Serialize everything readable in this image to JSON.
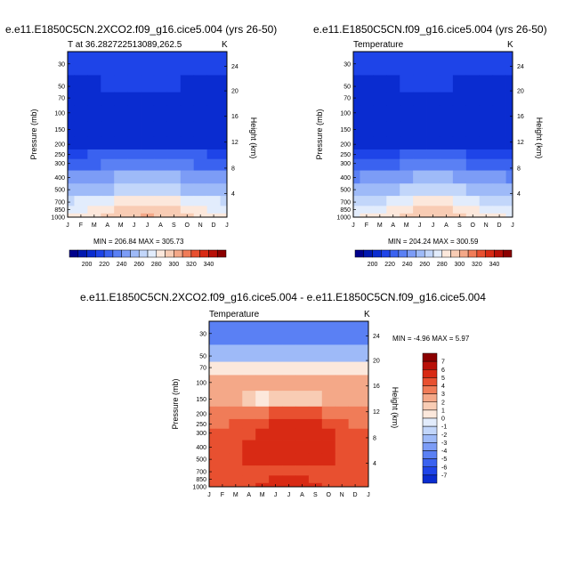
{
  "chart_data": [
    {
      "type": "heatmap",
      "title": "e.e11.E1850C5CN.2XCO2.f09_g16.cice5.004 (yrs 26-50)",
      "subtitle_left": "T at 36.282722513089,262.5",
      "units": "K",
      "xlabel": "",
      "ylabel": "Pressure (mb)",
      "ylabel_right": "Height (km)",
      "x_ticks": [
        "J",
        "F",
        "M",
        "A",
        "M",
        "J",
        "J",
        "A",
        "S",
        "O",
        "N",
        "D",
        "J"
      ],
      "y_ticks": [
        "30",
        "50",
        "70",
        "100",
        "150",
        "200",
        "250",
        "300",
        "400",
        "500",
        "700",
        "850",
        "1000"
      ],
      "y_ticks_right": [
        "24",
        "20",
        "16",
        "12",
        "8",
        "4"
      ],
      "min_max_text": "MIN = 206.84  MAX = 305.73",
      "colorbar_orientation": "horizontal",
      "colorbar_labels": [
        "200",
        "220",
        "240",
        "260",
        "280",
        "300",
        "320",
        "340"
      ],
      "colorbar_colors": [
        "#00008b",
        "#0018b0",
        "#0a2cd0",
        "#1e44e8",
        "#3a62f0",
        "#5a80f4",
        "#7c9cf6",
        "#9ebaf8",
        "#c2d6fa",
        "#e2ecfc",
        "#fce8dc",
        "#f8ccb4",
        "#f4a888",
        "#f07c58",
        "#e85030",
        "#d82a14",
        "#b81008",
        "#8b0000"
      ],
      "values": {
        "levels": [
          "30",
          "50",
          "70",
          "100",
          "150",
          "200",
          "250",
          "300",
          "400",
          "500",
          "700",
          "850",
          "1000"
        ],
        "months": [
          "J",
          "F",
          "M",
          "A",
          "M",
          "J",
          "J",
          "A",
          "S",
          "O",
          "N",
          "D",
          "J"
        ],
        "rows": [
          [
            215,
            216,
            217,
            218,
            219,
            220,
            221,
            220,
            218,
            217,
            216,
            215,
            215
          ],
          [
            212,
            213,
            214,
            215,
            216,
            217,
            217,
            216,
            215,
            214,
            213,
            212,
            212
          ],
          [
            210,
            210,
            212,
            209,
            208,
            208,
            208,
            208,
            210,
            210,
            209,
            210,
            210
          ],
          [
            210,
            210,
            210,
            208,
            207,
            207,
            207,
            207,
            208,
            208,
            209,
            210,
            210
          ],
          [
            211,
            211,
            211,
            209,
            208,
            208,
            208,
            208,
            209,
            210,
            211,
            211,
            211
          ],
          [
            214,
            214,
            214,
            214,
            214,
            214,
            214,
            214,
            214,
            214,
            214,
            214,
            214
          ],
          [
            222,
            223,
            225,
            227,
            230,
            232,
            233,
            232,
            230,
            227,
            225,
            223,
            222
          ],
          [
            230,
            231,
            233,
            236,
            239,
            241,
            242,
            241,
            239,
            236,
            233,
            231,
            230
          ],
          [
            246,
            247,
            249,
            252,
            255,
            257,
            258,
            257,
            255,
            252,
            249,
            247,
            246
          ],
          [
            258,
            259,
            261,
            264,
            268,
            270,
            271,
            270,
            268,
            264,
            261,
            259,
            258
          ],
          [
            274,
            275,
            277,
            281,
            285,
            288,
            289,
            288,
            285,
            281,
            277,
            275,
            274
          ],
          [
            283,
            284,
            287,
            291,
            295,
            299,
            300,
            299,
            296,
            291,
            287,
            284,
            283
          ],
          [
            288,
            289,
            292,
            296,
            300,
            304,
            305,
            304,
            301,
            296,
            292,
            289,
            288
          ]
        ]
      }
    },
    {
      "type": "heatmap",
      "title": "e.e11.E1850C5CN.f09_g16.cice5.004 (yrs 26-50)",
      "subtitle_left": "Temperature",
      "units": "K",
      "xlabel": "",
      "ylabel": "Pressure (mb)",
      "ylabel_right": "Height (km)",
      "x_ticks": [
        "J",
        "F",
        "M",
        "A",
        "M",
        "J",
        "J",
        "A",
        "S",
        "O",
        "N",
        "D",
        "J"
      ],
      "y_ticks": [
        "30",
        "50",
        "70",
        "100",
        "150",
        "200",
        "250",
        "300",
        "400",
        "500",
        "700",
        "850",
        "1000"
      ],
      "y_ticks_right": [
        "24",
        "20",
        "16",
        "12",
        "8",
        "4"
      ],
      "min_max_text": "MIN = 204.24  MAX = 300.59",
      "colorbar_orientation": "horizontal",
      "colorbar_labels": [
        "200",
        "220",
        "240",
        "260",
        "280",
        "300",
        "320",
        "340"
      ],
      "colorbar_colors": [
        "#00008b",
        "#0018b0",
        "#0a2cd0",
        "#1e44e8",
        "#3a62f0",
        "#5a80f4",
        "#7c9cf6",
        "#9ebaf8",
        "#c2d6fa",
        "#e2ecfc",
        "#fce8dc",
        "#f8ccb4",
        "#f4a888",
        "#f07c58",
        "#e85030",
        "#d82a14",
        "#b81008",
        "#8b0000"
      ],
      "values": {
        "levels": [
          "30",
          "50",
          "70",
          "100",
          "150",
          "200",
          "250",
          "300",
          "400",
          "500",
          "700",
          "850",
          "1000"
        ],
        "months": [
          "J",
          "F",
          "M",
          "A",
          "M",
          "J",
          "J",
          "A",
          "S",
          "O",
          "N",
          "D",
          "J"
        ],
        "rows": [
          [
            216,
            217,
            218,
            220,
            222,
            223,
            224,
            223,
            221,
            219,
            217,
            216,
            216
          ],
          [
            212,
            212,
            213,
            214,
            215,
            216,
            216,
            216,
            214,
            213,
            212,
            212,
            212
          ],
          [
            208,
            209,
            210,
            210,
            210,
            210,
            210,
            210,
            210,
            210,
            209,
            208,
            208
          ],
          [
            206,
            206,
            208,
            208,
            208,
            208,
            208,
            208,
            208,
            208,
            207,
            206,
            206
          ],
          [
            209,
            209,
            209,
            208,
            207,
            207,
            207,
            207,
            208,
            209,
            209,
            209,
            209
          ],
          [
            214,
            214,
            214,
            214,
            214,
            214,
            214,
            214,
            214,
            214,
            214,
            214,
            214
          ],
          [
            220,
            221,
            222,
            223,
            225,
            227,
            228,
            227,
            225,
            223,
            222,
            221,
            220
          ],
          [
            228,
            229,
            231,
            233,
            236,
            238,
            239,
            238,
            236,
            233,
            231,
            229,
            228
          ],
          [
            244,
            245,
            247,
            250,
            253,
            255,
            256,
            255,
            253,
            250,
            247,
            245,
            244
          ],
          [
            256,
            257,
            259,
            262,
            265,
            267,
            268,
            267,
            265,
            262,
            259,
            257,
            256
          ],
          [
            271,
            272,
            274,
            278,
            282,
            285,
            286,
            285,
            282,
            278,
            274,
            272,
            271
          ],
          [
            279,
            280,
            283,
            287,
            291,
            295,
            296,
            295,
            292,
            287,
            283,
            280,
            279
          ],
          [
            284,
            285,
            288,
            292,
            296,
            299,
            300,
            299,
            297,
            292,
            288,
            285,
            284
          ]
        ]
      }
    },
    {
      "type": "heatmap",
      "title": "e.e11.E1850C5CN.2XCO2.f09_g16.cice5.004 - e.e11.E1850C5CN.f09_g16.cice5.004",
      "subtitle_left": "Temperature",
      "units": "K",
      "xlabel": "",
      "ylabel": "Pressure (mb)",
      "ylabel_right": "Height (km)",
      "x_ticks": [
        "J",
        "F",
        "M",
        "A",
        "M",
        "J",
        "J",
        "A",
        "S",
        "O",
        "N",
        "D",
        "J"
      ],
      "y_ticks": [
        "30",
        "50",
        "70",
        "100",
        "150",
        "200",
        "250",
        "300",
        "400",
        "500",
        "700",
        "850",
        "1000"
      ],
      "y_ticks_right": [
        "24",
        "20",
        "16",
        "12",
        "8",
        "4"
      ],
      "min_max_text": "MIN =  -4.96 MAX =    5.97",
      "colorbar_orientation": "vertical",
      "colorbar_labels": [
        "7",
        "6",
        "5",
        "4",
        "3",
        "2",
        "1",
        "0",
        "-1",
        "-2",
        "-3",
        "-4",
        "-5",
        "-6",
        "-7"
      ],
      "colorbar_colors": [
        "#8b0000",
        "#b81008",
        "#d82a14",
        "#e85030",
        "#f07c58",
        "#f4a888",
        "#f8ccb4",
        "#fce8dc",
        "#e2ecfc",
        "#c2d6fa",
        "#9ebaf8",
        "#7c9cf6",
        "#5a80f4",
        "#3a62f0",
        "#1e44e8",
        "#0a2cd0"
      ],
      "values": {
        "levels": [
          "30",
          "50",
          "70",
          "100",
          "150",
          "200",
          "250",
          "300",
          "400",
          "500",
          "700",
          "850",
          "1000"
        ],
        "months": [
          "J",
          "F",
          "M",
          "A",
          "M",
          "J",
          "J",
          "A",
          "S",
          "O",
          "N",
          "D",
          "J"
        ],
        "rows": [
          [
            -4.9,
            -4.7,
            -4.6,
            -4.8,
            -4.9,
            -4.7,
            -4.6,
            -4.8,
            -4.9,
            -4.6,
            -4.7,
            -4.9,
            -4.9
          ],
          [
            -2.5,
            -2.3,
            -2.1,
            -2.4,
            -2.6,
            -2.3,
            -2.1,
            -2.2,
            -2.4,
            -2.2,
            -2.3,
            -2.5,
            -2.5
          ],
          [
            0.5,
            0.4,
            0.6,
            0.3,
            0.5,
            0.6,
            0.4,
            0.5,
            0.6,
            0.4,
            0.5,
            0.6,
            0.5
          ],
          [
            2.5,
            2.2,
            2.6,
            2.1,
            2.4,
            2.3,
            2.0,
            2.3,
            2.2,
            2.3,
            2.4,
            2.6,
            2.5
          ],
          [
            2.3,
            2.2,
            2.4,
            1.4,
            0.8,
            1.3,
            1.7,
            1.6,
            1.8,
            2.0,
            2.2,
            2.4,
            2.3
          ],
          [
            3.0,
            3.1,
            3.4,
            3.6,
            3.9,
            4.2,
            4.3,
            4.2,
            4.0,
            3.8,
            3.6,
            3.2,
            3.0
          ],
          [
            3.5,
            3.7,
            4.0,
            4.4,
            4.7,
            5.0,
            5.6,
            5.2,
            5.1,
            4.5,
            4.2,
            3.8,
            3.5
          ],
          [
            4.0,
            4.3,
            4.5,
            4.9,
            5.2,
            5.4,
            5.4,
            5.3,
            5.7,
            5.0,
            4.7,
            4.3,
            4.0
          ],
          [
            4.4,
            4.6,
            4.8,
            5.0,
            5.2,
            5.3,
            5.3,
            5.3,
            5.2,
            5.0,
            4.8,
            4.6,
            4.4
          ],
          [
            4.5,
            4.7,
            4.9,
            5.0,
            5.1,
            5.2,
            5.2,
            5.2,
            5.1,
            5.0,
            4.9,
            4.7,
            4.5
          ],
          [
            4.5,
            4.4,
            4.5,
            4.7,
            4.8,
            4.9,
            4.9,
            4.9,
            4.8,
            4.7,
            4.6,
            4.5,
            4.5
          ],
          [
            4.5,
            4.4,
            4.6,
            4.8,
            4.9,
            5.0,
            5.0,
            5.0,
            4.9,
            4.8,
            4.6,
            4.5,
            4.5
          ],
          [
            4.6,
            4.5,
            4.7,
            4.9,
            5.0,
            5.1,
            5.1,
            5.1,
            5.0,
            4.9,
            4.7,
            4.6,
            4.6
          ]
        ]
      }
    }
  ]
}
